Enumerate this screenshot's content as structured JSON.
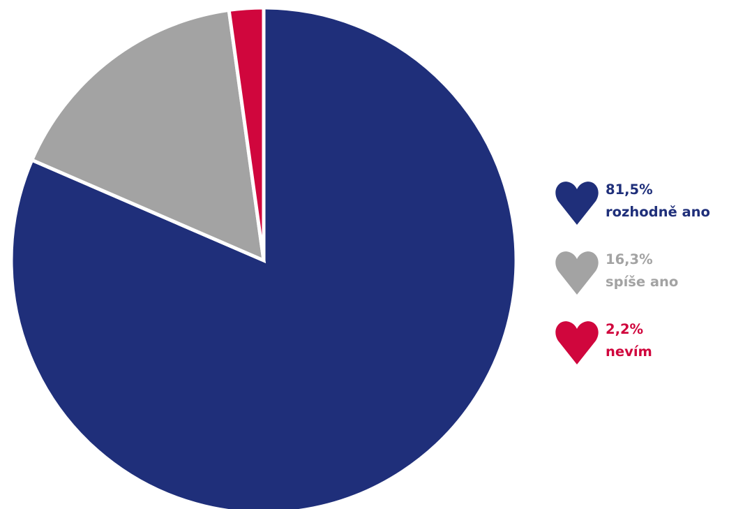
{
  "chart_data": {
    "type": "pie",
    "start_angle_deg": 0,
    "direction": "clockwise",
    "slices": [
      {
        "label": "rozhodně ano",
        "value": 81.5,
        "value_label": "81,5%",
        "color": "#1f2f7a"
      },
      {
        "label": "spíše ano",
        "value": 16.3,
        "value_label": "16,3%",
        "color": "#a3a3a3"
      },
      {
        "label": "nevím",
        "value": 2.2,
        "value_label": "2,2%",
        "color": "#d0063d"
      }
    ],
    "legend_position": "right",
    "legend_marker": "heart"
  }
}
